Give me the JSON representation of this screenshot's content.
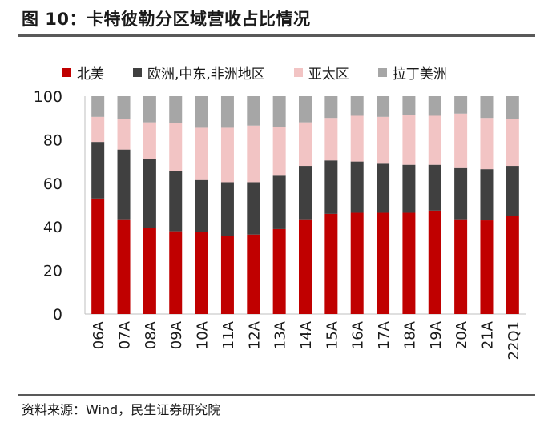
{
  "figure_title": "图 10：卡特彼勒分区域营收占比情况",
  "source_note": "资料来源：Wind，民生证券研究院",
  "chart_data": {
    "type": "bar",
    "stacked": true,
    "categories": [
      "06A",
      "07A",
      "08A",
      "09A",
      "10A",
      "11A",
      "12A",
      "13A",
      "14A",
      "15A",
      "16A",
      "17A",
      "18A",
      "19A",
      "20A",
      "21A",
      "22Q1"
    ],
    "series": [
      {
        "name": "北美",
        "color": "#c00000",
        "values": [
          53,
          43.5,
          39.5,
          38,
          37.5,
          36,
          36.5,
          39,
          43.5,
          46,
          46.5,
          46.5,
          46.5,
          47.5,
          43.5,
          43,
          45
        ]
      },
      {
        "name": "欧洲,中东,非洲地区",
        "color": "#404040",
        "values": [
          26,
          32,
          31.5,
          27.5,
          24,
          24.5,
          24,
          24.5,
          24.5,
          24.5,
          23.5,
          22.5,
          22,
          21,
          23.5,
          23.5,
          23
        ]
      },
      {
        "name": "亚太区",
        "color": "#f2c4c4",
        "values": [
          11.5,
          14,
          17,
          22,
          24,
          25,
          26,
          22.5,
          20,
          19.5,
          21,
          21.5,
          23,
          22.5,
          25,
          23.5,
          21.5
        ]
      },
      {
        "name": "拉丁美洲",
        "color": "#a6a6a6",
        "values": [
          9.5,
          10.5,
          12,
          12.5,
          14.5,
          14.5,
          13.5,
          14,
          12,
          10,
          9,
          9.5,
          8.5,
          9,
          8,
          10,
          10.5
        ]
      }
    ],
    "ylim": [
      0,
      100
    ],
    "yticks": [
      0,
      20,
      40,
      60,
      80,
      100
    ],
    "xlabel": "",
    "ylabel": "",
    "grid": false,
    "legend_position": "top"
  }
}
